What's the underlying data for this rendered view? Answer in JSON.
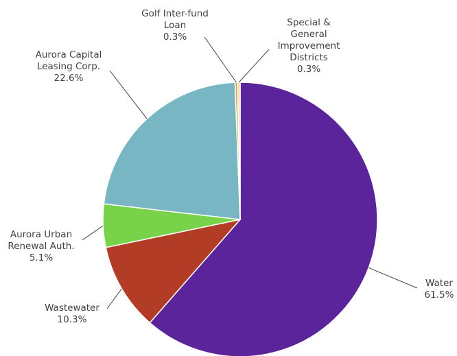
{
  "chart_data": {
    "type": "pie",
    "title": "",
    "legend": "none",
    "slices": [
      {
        "name": "Water",
        "value": 61.5,
        "label_lines": [
          "Water",
          "61.5%"
        ],
        "color": "#5B249B"
      },
      {
        "name": "Wastewater",
        "value": 10.3,
        "label_lines": [
          "Wastewater",
          "10.3%"
        ],
        "color": "#B23C25"
      },
      {
        "name": "Aurora Urban Renewal Auth.",
        "value": 5.1,
        "label_lines": [
          "Aurora Urban",
          "Renewal Auth.",
          "5.1%"
        ],
        "color": "#79D34A"
      },
      {
        "name": "Aurora Capital Leasing Corp.",
        "value": 22.6,
        "label_lines": [
          "Aurora Capital",
          "Leasing Corp.",
          "22.6%"
        ],
        "color": "#78B6C4"
      },
      {
        "name": "Golf Inter-fund Loan",
        "value": 0.3,
        "label_lines": [
          "Golf Inter-fund",
          "Loan",
          "0.3%"
        ],
        "color": "#E3A247"
      },
      {
        "name": "Special & General Improvement Districts",
        "value": 0.3,
        "label_lines": [
          "Special &",
          "General",
          "Improvement",
          "Districts",
          "0.3%"
        ],
        "color": "#E8DDB0"
      }
    ]
  }
}
